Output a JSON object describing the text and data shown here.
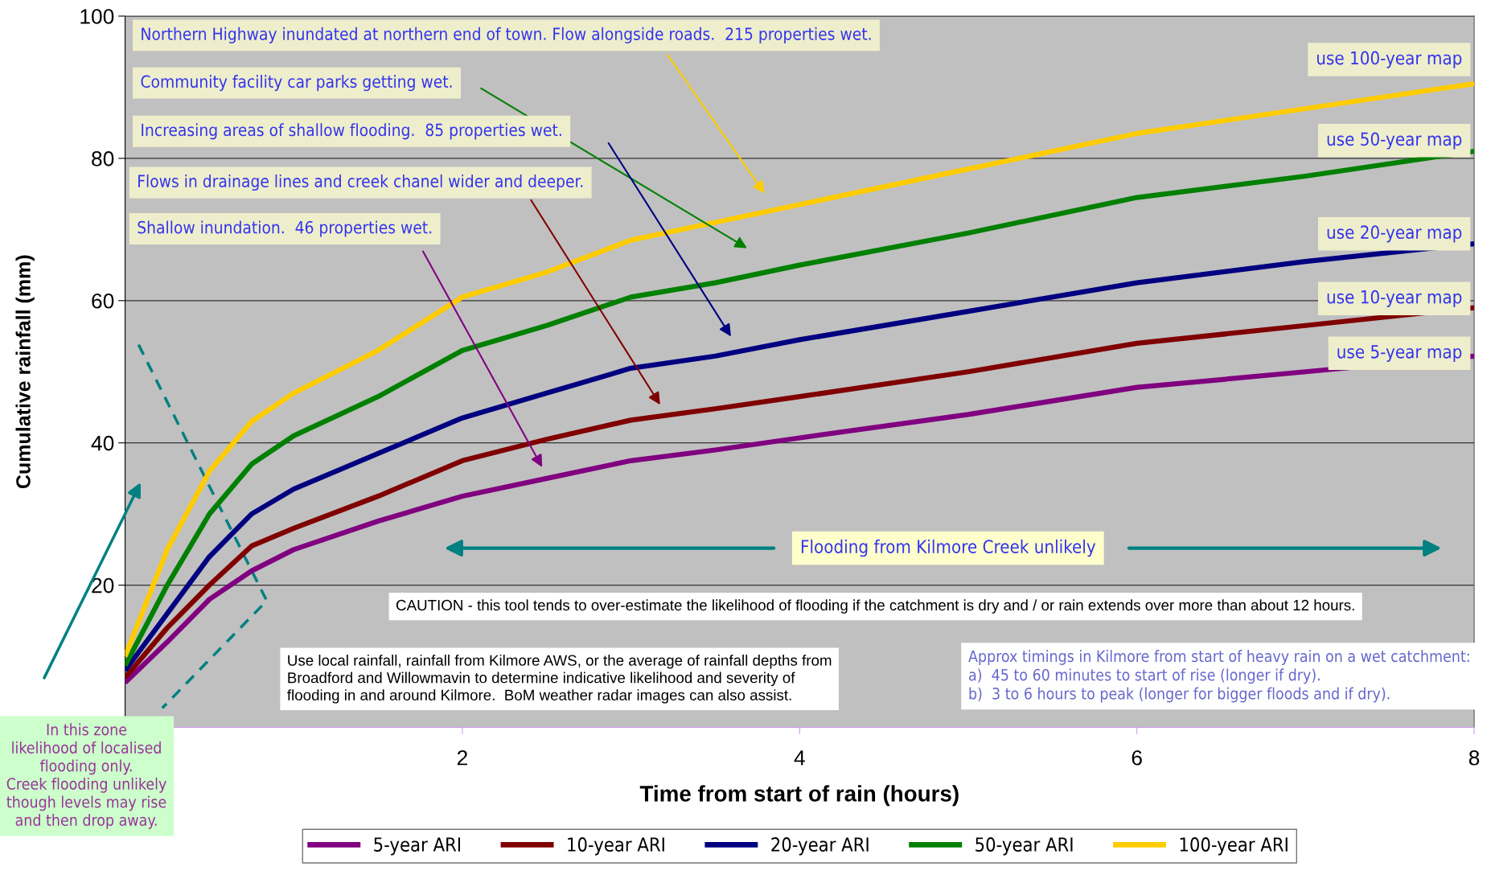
{
  "chart_data": {
    "type": "line",
    "xlabel": "Time from start of rain (hours)",
    "ylabel": "Cumulative rainfall (mm)",
    "xlim": [
      0,
      8
    ],
    "ylim": [
      0,
      100
    ],
    "xticks": [
      2,
      4,
      6,
      8
    ],
    "yticks": [
      20,
      40,
      60,
      80,
      100
    ],
    "grid": "y",
    "legend": "bottom",
    "marker": "none",
    "line_style": "solid",
    "x": [
      0,
      0.25,
      0.5,
      0.75,
      1,
      1.5,
      2,
      2.5,
      3,
      3.5,
      4,
      5,
      6,
      7,
      8
    ],
    "series": [
      {
        "name": "5-year ARI",
        "color": "#800080",
        "values": [
          6.3,
          12,
          18,
          22,
          25,
          29,
          32.5,
          35,
          37.5,
          39,
          40.7,
          44,
          47.8,
          50,
          52.2
        ]
      },
      {
        "name": "10-year ARI",
        "color": "#800000",
        "values": [
          7,
          14,
          20,
          25.5,
          28,
          32.5,
          37.5,
          40.5,
          43.2,
          44.8,
          46.5,
          50,
          54,
          56.5,
          59
        ]
      },
      {
        "name": "20-year ARI",
        "color": "#000080",
        "values": [
          8,
          16,
          24,
          30,
          33.5,
          38.5,
          43.5,
          47,
          50.5,
          52.2,
          54.5,
          58.5,
          62.5,
          65.5,
          68
        ]
      },
      {
        "name": "50-year ARI",
        "color": "#008000",
        "values": [
          8.7,
          20,
          30,
          37,
          41,
          46.5,
          53,
          56.5,
          60.5,
          62.5,
          65,
          69.5,
          74.5,
          77.5,
          81
        ]
      },
      {
        "name": "100-year ARI",
        "color": "#ffcc00",
        "values": [
          10,
          25,
          36,
          43,
          47,
          53,
          60.5,
          64,
          68.5,
          71,
          73.5,
          78.5,
          83.5,
          87,
          90.5
        ]
      }
    ],
    "annotations": [
      "Northern Highway inundated at northern end of town. Flow alongside roads.  215 properties wet.",
      "Community facility car parks getting wet.",
      "Increasing areas of shallow flooding.  85 properties wet.",
      "Flows in drainage lines and creek chanel wider and deeper.",
      "Shallow inundation.  46 properties wet.",
      "use 100-year map",
      "use 50-year map",
      "use 20-year map",
      "use 10-year map",
      "use 5-year map",
      "Flooding from Kilmore Creek unlikely",
      "CAUTION - this tool tends to over-estimate the likelihood of flooding if the catchment is dry and / or rain extends over more than about 12 hours.",
      "Use local rainfall, rainfall from Kilmore AWS, or the average of rainfall depths from\nBroadford and Willowmavin to determine indicative likelihood and severity of\nflooding in and around Kilmore.  BoM weather radar images can also assist.",
      "Approx timings in Kilmore from start of heavy rain on a wet catchment:\na)  45 to 60 minutes to start of rise (longer if dry).\nb)  3 to 6 hours to peak (longer for bigger floods and if dry).",
      "In this zone\nlikelihood of localised\nflooding only.\nCreek flooding unlikely\nthough levels may rise\nand then drop away."
    ]
  }
}
